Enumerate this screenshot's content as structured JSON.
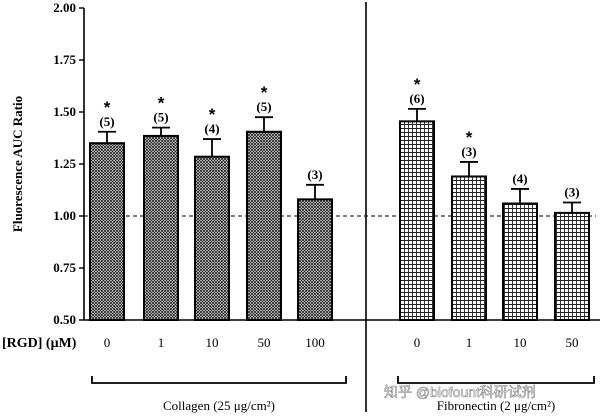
{
  "chart_data": {
    "type": "bar",
    "ylabel": "Fluorescence AUC Ratio",
    "ylim": [
      0.5,
      2.0
    ],
    "yticks": [
      "0.50",
      "0.75",
      "1.00",
      "1.25",
      "1.50",
      "1.75",
      "2.00"
    ],
    "ytick_values": [
      0.5,
      0.75,
      1.0,
      1.25,
      1.5,
      1.75,
      2.0
    ],
    "reference_line": 1.0,
    "x_axis_label": "[RGD] (μM)",
    "groups": [
      {
        "label": "Collagen (25 μg/cm²)",
        "pattern": "dense-crosshatch",
        "categories": [
          "0",
          "1",
          "10",
          "50",
          "100"
        ],
        "values": [
          1.35,
          1.385,
          1.285,
          1.405,
          1.08
        ],
        "errors": [
          0.055,
          0.04,
          0.085,
          0.07,
          0.07
        ],
        "n_labels": [
          "(5)",
          "(5)",
          "(4)",
          "(5)",
          "(3)"
        ],
        "significant": [
          true,
          true,
          true,
          true,
          false
        ]
      },
      {
        "label": "Fibronectin (2 μg/cm²)",
        "pattern": "grid",
        "categories": [
          "0",
          "1",
          "10",
          "50"
        ],
        "values": [
          1.455,
          1.19,
          1.06,
          1.015
        ],
        "errors": [
          0.06,
          0.07,
          0.07,
          0.05
        ],
        "n_labels": [
          "(6)",
          "(3)",
          "(4)",
          "(3)"
        ],
        "significant": [
          true,
          true,
          false,
          false
        ]
      }
    ],
    "significance_marker": "*"
  },
  "watermark": "知乎 @biofount科研试剂"
}
